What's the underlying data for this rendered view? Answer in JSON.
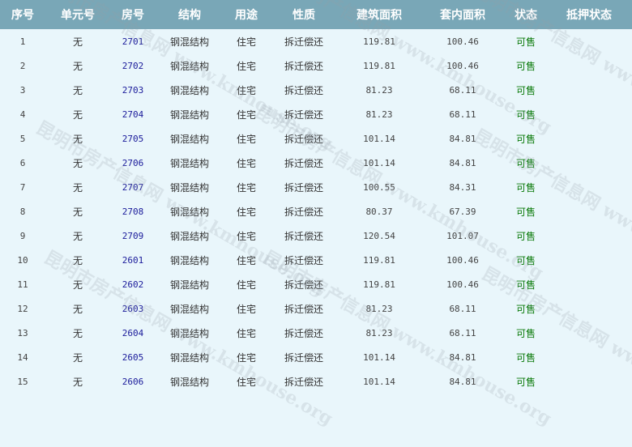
{
  "headers": [
    "序号",
    "单元号",
    "房号",
    "结构",
    "用途",
    "性质",
    "建筑面积",
    "套内面积",
    "状态",
    "抵押状态"
  ],
  "rows": [
    [
      "1",
      "无",
      "2701",
      "钢混结构",
      "住宅",
      "拆迁偿还",
      "119.81",
      "100.46",
      "可售",
      ""
    ],
    [
      "2",
      "无",
      "2702",
      "钢混结构",
      "住宅",
      "拆迁偿还",
      "119.81",
      "100.46",
      "可售",
      ""
    ],
    [
      "3",
      "无",
      "2703",
      "钢混结构",
      "住宅",
      "拆迁偿还",
      "81.23",
      "68.11",
      "可售",
      ""
    ],
    [
      "4",
      "无",
      "2704",
      "钢混结构",
      "住宅",
      "拆迁偿还",
      "81.23",
      "68.11",
      "可售",
      ""
    ],
    [
      "5",
      "无",
      "2705",
      "钢混结构",
      "住宅",
      "拆迁偿还",
      "101.14",
      "84.81",
      "可售",
      ""
    ],
    [
      "6",
      "无",
      "2706",
      "钢混结构",
      "住宅",
      "拆迁偿还",
      "101.14",
      "84.81",
      "可售",
      ""
    ],
    [
      "7",
      "无",
      "2707",
      "钢混结构",
      "住宅",
      "拆迁偿还",
      "100.55",
      "84.31",
      "可售",
      ""
    ],
    [
      "8",
      "无",
      "2708",
      "钢混结构",
      "住宅",
      "拆迁偿还",
      "80.37",
      "67.39",
      "可售",
      ""
    ],
    [
      "9",
      "无",
      "2709",
      "钢混结构",
      "住宅",
      "拆迁偿还",
      "120.54",
      "101.07",
      "可售",
      ""
    ],
    [
      "10",
      "无",
      "2601",
      "钢混结构",
      "住宅",
      "拆迁偿还",
      "119.81",
      "100.46",
      "可售",
      ""
    ],
    [
      "11",
      "无",
      "2602",
      "钢混结构",
      "住宅",
      "拆迁偿还",
      "119.81",
      "100.46",
      "可售",
      ""
    ],
    [
      "12",
      "无",
      "2603",
      "钢混结构",
      "住宅",
      "拆迁偿还",
      "81.23",
      "68.11",
      "可售",
      ""
    ],
    [
      "13",
      "无",
      "2604",
      "钢混结构",
      "住宅",
      "拆迁偿还",
      "81.23",
      "68.11",
      "可售",
      ""
    ],
    [
      "14",
      "无",
      "2605",
      "钢混结构",
      "住宅",
      "拆迁偿还",
      "101.14",
      "84.81",
      "可售",
      ""
    ],
    [
      "15",
      "无",
      "2606",
      "钢混结构",
      "住宅",
      "拆迁偿还",
      "101.14",
      "84.81",
      "可售",
      ""
    ]
  ],
  "watermark": "昆明市房产信息网 www.kmhouse.org",
  "colors": {
    "header_bg": "#79a7b7",
    "body_bg": "#e9f6fb",
    "room_link": "#1a1a9a",
    "status": "#0a7a0a"
  }
}
